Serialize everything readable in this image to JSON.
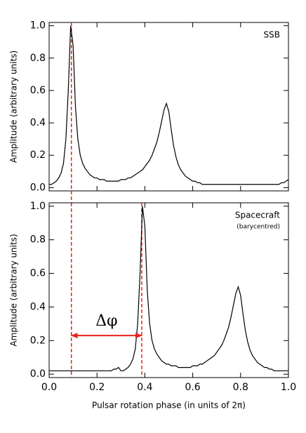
{
  "chart_data": [
    {
      "type": "line",
      "y_label": "Amplitude (arbitrary units)",
      "annotations": [
        "SSB"
      ],
      "x": [
        0,
        0.01,
        0.02,
        0.03,
        0.04,
        0.05,
        0.06,
        0.07,
        0.08,
        0.09,
        0.1,
        0.11,
        0.12,
        0.13,
        0.14,
        0.15,
        0.16,
        0.17,
        0.18,
        0.19,
        0.2,
        0.21,
        0.22,
        0.23,
        0.24,
        0.25,
        0.26,
        0.27,
        0.28,
        0.29,
        0.3,
        0.31,
        0.32,
        0.33,
        0.34,
        0.35,
        0.36,
        0.37,
        0.38,
        0.39,
        0.4,
        0.41,
        0.42,
        0.43,
        0.44,
        0.45,
        0.46,
        0.47,
        0.48,
        0.49,
        0.5,
        0.51,
        0.52,
        0.53,
        0.54,
        0.55,
        0.56,
        0.57,
        0.58,
        0.59,
        0.6,
        0.61,
        0.62,
        0.63,
        0.64,
        0.65,
        0.66,
        0.67,
        0.68,
        0.69,
        0.7,
        0.71,
        0.72,
        0.73,
        0.74,
        0.75,
        0.76,
        0.77,
        0.78,
        0.79,
        0.8,
        0.81,
        0.82,
        0.83,
        0.84,
        0.85,
        0.86,
        0.87,
        0.88,
        0.89,
        0.9,
        0.91,
        0.92,
        0.93,
        0.94,
        0.95,
        0.96,
        0.97,
        0.98,
        0.99,
        1
      ],
      "values": [
        0.02,
        0.02,
        0.03,
        0.04,
        0.06,
        0.09,
        0.15,
        0.3,
        0.6,
        1.0,
        0.88,
        0.5,
        0.3,
        0.2,
        0.15,
        0.12,
        0.1,
        0.08,
        0.07,
        0.06,
        0.06,
        0.05,
        0.05,
        0.05,
        0.04,
        0.04,
        0.04,
        0.04,
        0.04,
        0.04,
        0.05,
        0.05,
        0.05,
        0.06,
        0.06,
        0.07,
        0.08,
        0.09,
        0.1,
        0.11,
        0.13,
        0.15,
        0.17,
        0.2,
        0.24,
        0.28,
        0.34,
        0.41,
        0.48,
        0.52,
        0.47,
        0.36,
        0.26,
        0.19,
        0.14,
        0.11,
        0.09,
        0.07,
        0.06,
        0.05,
        0.04,
        0.04,
        0.03,
        0.03,
        0.02,
        0.02,
        0.02,
        0.02,
        0.02,
        0.02,
        0.02,
        0.02,
        0.02,
        0.02,
        0.02,
        0.02,
        0.02,
        0.02,
        0.02,
        0.02,
        0.02,
        0.02,
        0.02,
        0.02,
        0.02,
        0.02,
        0.02,
        0.02,
        0.02,
        0.02,
        0.02,
        0.02,
        0.02,
        0.02,
        0.02,
        0.02,
        0.02,
        0.03,
        0.03,
        0.04,
        0.05
      ],
      "color": "#000000",
      "vlines": [
        0.093
      ],
      "vline_color": "#e8231c",
      "xlim": [
        0,
        1
      ],
      "xticks": [
        0,
        0.2,
        0.4,
        0.6,
        0.8,
        1
      ],
      "ylim": [
        -0.02,
        1.02
      ],
      "yticks": [
        {
          "value": 0,
          "label": "0.0"
        },
        {
          "value": 0.2,
          "label": "0.2"
        },
        {
          "value": 0.4,
          "label": "0.4"
        },
        {
          "value": 0.6,
          "label": "0.6"
        },
        {
          "value": 0.8,
          "label": "0.8"
        },
        {
          "value": 1,
          "label": "1.0"
        }
      ]
    },
    {
      "type": "line",
      "y_label": "Amplitude (arbitrary units)",
      "x_label": "Pulsar rotation phase (in units of 2π)",
      "annotations": [
        "Spacecraft",
        "(barycentred)"
      ],
      "x": [
        0,
        0.01,
        0.02,
        0.03,
        0.04,
        0.05,
        0.06,
        0.07,
        0.08,
        0.09,
        0.1,
        0.11,
        0.12,
        0.13,
        0.14,
        0.15,
        0.16,
        0.17,
        0.18,
        0.19,
        0.2,
        0.21,
        0.22,
        0.23,
        0.24,
        0.25,
        0.26,
        0.27,
        0.28,
        0.29,
        0.3,
        0.31,
        0.32,
        0.33,
        0.34,
        0.35,
        0.36,
        0.37,
        0.38,
        0.39,
        0.4,
        0.41,
        0.42,
        0.43,
        0.44,
        0.45,
        0.46,
        0.47,
        0.48,
        0.49,
        0.5,
        0.51,
        0.52,
        0.53,
        0.54,
        0.55,
        0.56,
        0.57,
        0.58,
        0.59,
        0.6,
        0.61,
        0.62,
        0.63,
        0.64,
        0.65,
        0.66,
        0.67,
        0.68,
        0.69,
        0.7,
        0.71,
        0.72,
        0.73,
        0.74,
        0.75,
        0.76,
        0.77,
        0.78,
        0.79,
        0.8,
        0.81,
        0.82,
        0.83,
        0.84,
        0.85,
        0.86,
        0.87,
        0.88,
        0.89,
        0.9,
        0.91,
        0.92,
        0.93,
        0.94,
        0.95,
        0.96,
        0.97,
        0.98,
        0.99,
        1
      ],
      "values": [
        0.02,
        0.02,
        0.02,
        0.02,
        0.02,
        0.02,
        0.02,
        0.02,
        0.02,
        0.02,
        0.02,
        0.02,
        0.02,
        0.02,
        0.02,
        0.02,
        0.02,
        0.02,
        0.02,
        0.02,
        0.02,
        0.02,
        0.02,
        0.02,
        0.02,
        0.02,
        0.02,
        0.03,
        0.03,
        0.04,
        0.02,
        0.02,
        0.03,
        0.04,
        0.06,
        0.09,
        0.15,
        0.3,
        0.6,
        1.0,
        0.88,
        0.5,
        0.3,
        0.2,
        0.15,
        0.12,
        0.1,
        0.08,
        0.07,
        0.06,
        0.06,
        0.05,
        0.05,
        0.05,
        0.04,
        0.04,
        0.04,
        0.04,
        0.04,
        0.04,
        0.05,
        0.05,
        0.05,
        0.06,
        0.06,
        0.07,
        0.08,
        0.09,
        0.1,
        0.11,
        0.13,
        0.15,
        0.17,
        0.2,
        0.24,
        0.28,
        0.34,
        0.41,
        0.48,
        0.52,
        0.47,
        0.36,
        0.26,
        0.19,
        0.14,
        0.11,
        0.09,
        0.07,
        0.06,
        0.05,
        0.04,
        0.04,
        0.03,
        0.03,
        0.02,
        0.02,
        0.02,
        0.02,
        0.02,
        0.02,
        0.02
      ],
      "color": "#000000",
      "vlines": [
        0.093,
        0.387
      ],
      "vline_color": "#e8231c",
      "arrow": {
        "label": "Δφ",
        "from": 0.093,
        "to": 0.387,
        "y": 0.23
      },
      "xlim": [
        0,
        1
      ],
      "xticks": [
        {
          "value": 0,
          "label": "0.0"
        },
        {
          "value": 0.2,
          "label": "0.2"
        },
        {
          "value": 0.4,
          "label": "0.4"
        },
        {
          "value": 0.6,
          "label": "0.6"
        },
        {
          "value": 0.8,
          "label": "0.8"
        },
        {
          "value": 1,
          "label": "1.0"
        }
      ],
      "ylim": [
        -0.02,
        1.02
      ],
      "yticks": [
        {
          "value": 0,
          "label": "0.0"
        },
        {
          "value": 0.2,
          "label": "0.2"
        },
        {
          "value": 0.4,
          "label": "0.4"
        },
        {
          "value": 0.6,
          "label": "0.6"
        },
        {
          "value": 0.8,
          "label": "0.8"
        },
        {
          "value": 1,
          "label": "1.0"
        }
      ]
    }
  ]
}
